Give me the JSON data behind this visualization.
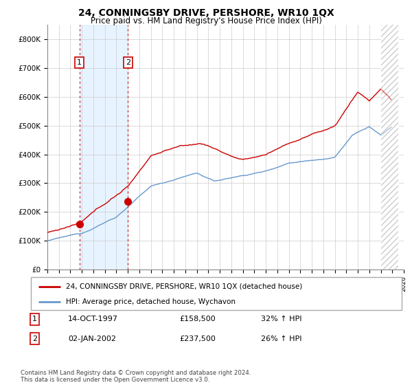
{
  "title": "24, CONNINGSBY DRIVE, PERSHORE, WR10 1QX",
  "subtitle": "Price paid vs. HM Land Registry's House Price Index (HPI)",
  "legend_line1": "24, CONNINGSBY DRIVE, PERSHORE, WR10 1QX (detached house)",
  "legend_line2": "HPI: Average price, detached house, Wychavon",
  "transaction1_date": "14-OCT-1997",
  "transaction1_price": "£158,500",
  "transaction1_hpi": "32% ↑ HPI",
  "transaction2_date": "02-JAN-2002",
  "transaction2_price": "£237,500",
  "transaction2_hpi": "26% ↑ HPI",
  "footer": "Contains HM Land Registry data © Crown copyright and database right 2024.\nThis data is licensed under the Open Government Licence v3.0.",
  "red_color": "#cc0000",
  "blue_color": "#6699cc",
  "shade_color": "#ddeeff",
  "grid_color": "#cccccc",
  "ylim": [
    0,
    850000
  ],
  "yticks": [
    0,
    100000,
    200000,
    300000,
    400000,
    500000,
    600000,
    700000,
    800000
  ],
  "ytick_labels": [
    "£0",
    "£100K",
    "£200K",
    "£300K",
    "£400K",
    "£500K",
    "£600K",
    "£700K",
    "£800K"
  ],
  "t1_year": 1997.79,
  "t1_price": 158500,
  "t2_year": 2002.0,
  "t2_price": 237500,
  "xmin": 1995,
  "xmax": 2025,
  "hatch_start": 2024.0
}
